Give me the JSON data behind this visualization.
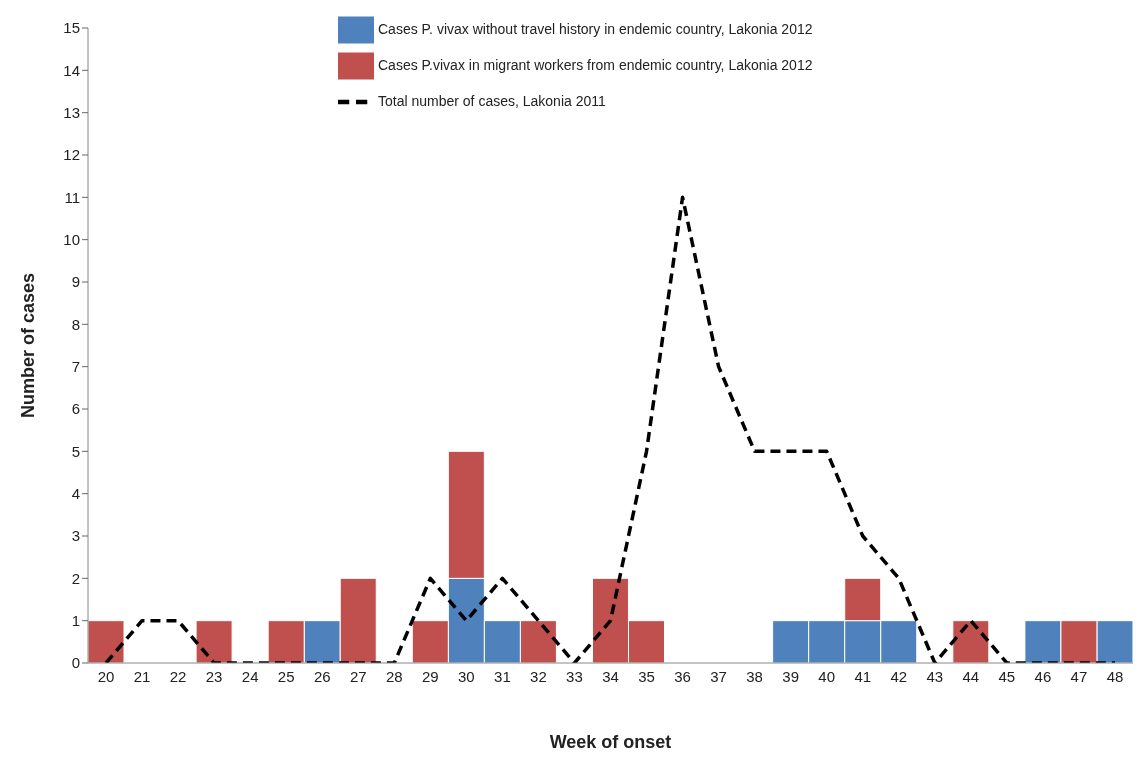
{
  "chart_data": {
    "type": "bar",
    "stacked": true,
    "xlabel": "Week of onset",
    "ylabel": "Number of cases",
    "categories": [
      "20",
      "21",
      "22",
      "23",
      "24",
      "25",
      "26",
      "27",
      "28",
      "29",
      "30",
      "31",
      "32",
      "33",
      "34",
      "35",
      "36",
      "37",
      "38",
      "39",
      "40",
      "41",
      "42",
      "43",
      "44",
      "45",
      "46",
      "47",
      "48"
    ],
    "series": [
      {
        "name": "Cases P. vivax without travel history in endemic country, Lakonia 2012",
        "color": "#4f81bd",
        "values": [
          0,
          0,
          0,
          0,
          0,
          0,
          1,
          0,
          0,
          0,
          2,
          1,
          0,
          0,
          0,
          0,
          0,
          0,
          0,
          1,
          1,
          1,
          1,
          0,
          0,
          0,
          1,
          0,
          1
        ]
      },
      {
        "name": "Cases P.vivax in migrant workers from endemic country, Lakonia 2012",
        "color": "#c0504d",
        "values": [
          1,
          0,
          0,
          1,
          0,
          1,
          0,
          2,
          0,
          1,
          3,
          0,
          1,
          0,
          2,
          1,
          0,
          0,
          0,
          0,
          0,
          1,
          0,
          0,
          1,
          0,
          0,
          1,
          0
        ]
      },
      {
        "name": "Total number of cases, Lakonia 2011",
        "type": "line",
        "color": "#000000",
        "line_style": "dashed",
        "values": [
          0,
          1,
          1,
          0,
          0,
          0,
          0,
          0,
          0,
          2,
          1,
          2,
          1,
          0,
          1,
          5,
          11,
          7,
          5,
          5,
          5,
          3,
          2,
          0,
          1,
          0,
          0,
          0,
          0
        ]
      }
    ],
    "ylim": [
      0,
      15
    ],
    "yticks": [
      0,
      1,
      2,
      3,
      4,
      5,
      6,
      7,
      8,
      9,
      10,
      11,
      12,
      13,
      14,
      15
    ],
    "legend": "top right",
    "marker": "none"
  }
}
